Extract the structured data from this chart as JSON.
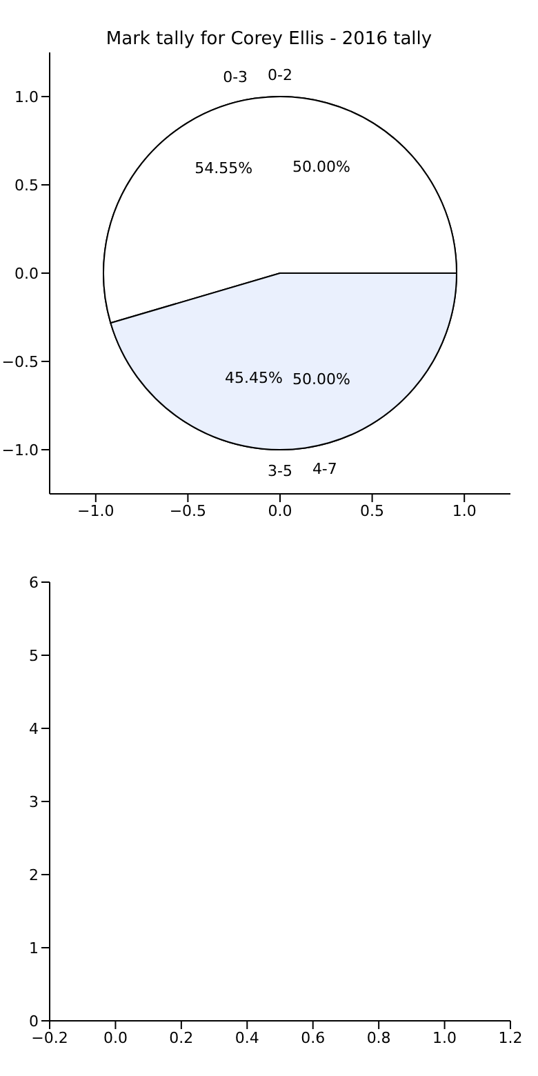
{
  "chart_data": [
    {
      "type": "scatter",
      "title": "Mark tally for Corey Ellis - 2016 tally",
      "xlim": [
        -1.25,
        1.25
      ],
      "xticks": [
        {
          "value": -1,
          "label": "−1.0"
        },
        {
          "value": -0.5,
          "label": "−0.5"
        },
        {
          "value": 0,
          "label": "0.0"
        },
        {
          "value": 0.5,
          "label": "0.5"
        },
        {
          "value": 1,
          "label": "1.0"
        }
      ],
      "ylim": [
        -1.25,
        1.25
      ],
      "yticks": [
        {
          "value": -1,
          "label": "−1.0"
        },
        {
          "value": -0.5,
          "label": "−0.5"
        },
        {
          "value": 0,
          "label": "0.0"
        },
        {
          "value": 0.5,
          "label": "0.5"
        },
        {
          "value": 1,
          "label": "1.0"
        }
      ]
    },
    {
      "type": "pie",
      "categories": [
        "0-2",
        "3-5"
      ],
      "values": [
        50,
        50
      ],
      "colors": [
        "#ffffff",
        "#eaf0fd"
      ],
      "value_labels": [
        "50.00%",
        "50.00%"
      ]
    },
    {
      "type": "pie",
      "categories": [
        "0-3",
        "4-7"
      ],
      "values": [
        54.55,
        45.45
      ],
      "colors": [
        "#ffffff",
        "#eaf0fd"
      ],
      "value_labels": [
        "54.55%",
        "45.45%"
      ]
    },
    {
      "type": "scatter",
      "xlim": [
        -0.2,
        1.2
      ],
      "xticks": [
        {
          "value": -0.2,
          "label": "−0.2"
        },
        {
          "value": 0,
          "label": "0.0"
        },
        {
          "value": 0.2,
          "label": "0.2"
        },
        {
          "value": 0.4,
          "label": "0.4"
        },
        {
          "value": 0.6,
          "label": "0.6"
        },
        {
          "value": 0.8,
          "label": "0.8"
        },
        {
          "value": 1,
          "label": "1.0"
        },
        {
          "value": 1.2,
          "label": "1.2"
        }
      ],
      "ylim": [
        0,
        6
      ],
      "yticks": [
        0,
        1,
        2,
        3,
        4,
        5,
        6
      ]
    }
  ]
}
